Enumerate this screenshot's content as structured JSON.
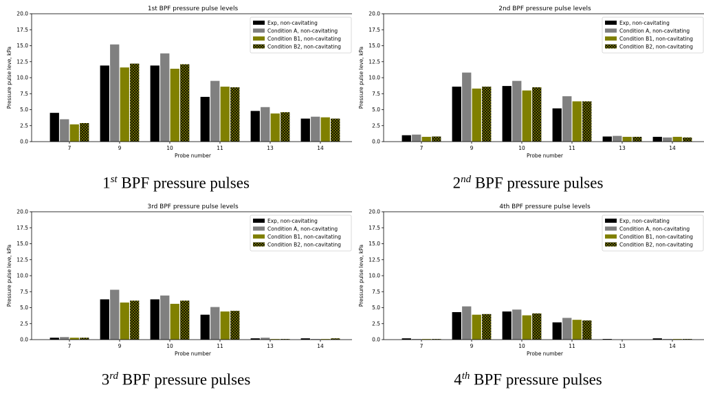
{
  "chart_data": [
    {
      "type": "bar",
      "title": "1st BPF pressure pulse levels",
      "xlabel": "Probe number",
      "ylabel": "Pressure pulse leve, kPa",
      "ylim": [
        0,
        20
      ],
      "yticks": [
        "0.0",
        "2.5",
        "5.0",
        "7.5",
        "10.0",
        "12.5",
        "15.0",
        "17.5",
        "20.0"
      ],
      "legend_position": "top-right",
      "categories": [
        "7",
        "9",
        "10",
        "11",
        "13",
        "14"
      ],
      "series": [
        {
          "name": "Exp, non-cavitating",
          "color": "#000000",
          "values": [
            4.5,
            11.9,
            11.9,
            7.0,
            4.8,
            3.6
          ]
        },
        {
          "name": "Condition A, non-cavitating",
          "color": "#808080",
          "values": [
            3.5,
            15.2,
            13.8,
            9.5,
            5.4,
            3.9
          ]
        },
        {
          "name": "Condition B1, non-cavitating",
          "color": "#808000",
          "values": [
            2.7,
            11.6,
            11.4,
            8.6,
            4.4,
            3.8
          ]
        },
        {
          "name": "Condition B2, non-cavitating",
          "color": "#808000",
          "hatch": true,
          "values": [
            2.9,
            12.2,
            12.1,
            8.5,
            4.6,
            3.6
          ]
        }
      ]
    },
    {
      "type": "bar",
      "title": "2nd BPF pressure pulse levels",
      "xlabel": "Probe number",
      "ylabel": "Pressure pulse leve, kPa",
      "ylim": [
        0,
        20
      ],
      "yticks": [
        "0.0",
        "2.5",
        "5.0",
        "7.5",
        "10.0",
        "12.5",
        "15.0",
        "17.5",
        "20.0"
      ],
      "legend_position": "top-right",
      "categories": [
        "7",
        "9",
        "10",
        "11",
        "13",
        "14"
      ],
      "series": [
        {
          "name": "Exp, non-cavitating",
          "color": "#000000",
          "values": [
            1.0,
            8.6,
            8.7,
            5.2,
            0.8,
            0.75
          ]
        },
        {
          "name": "Condition A, non-cavitating",
          "color": "#808080",
          "values": [
            1.1,
            10.8,
            9.5,
            7.1,
            0.9,
            0.65
          ]
        },
        {
          "name": "Condition B1, non-cavitating",
          "color": "#808000",
          "values": [
            0.75,
            8.3,
            8.0,
            6.3,
            0.75,
            0.75
          ]
        },
        {
          "name": "Condition B2, non-cavitating",
          "color": "#808000",
          "hatch": true,
          "values": [
            0.8,
            8.6,
            8.5,
            6.3,
            0.75,
            0.65
          ]
        }
      ]
    },
    {
      "type": "bar",
      "title": "3rd BPF pressure pulse levels",
      "xlabel": "Probe number",
      "ylabel": "Pressure pulse leve, kPa",
      "ylim": [
        0,
        20
      ],
      "yticks": [
        "0.0",
        "2.5",
        "5.0",
        "7.5",
        "10.0",
        "12.5",
        "15.0",
        "17.5",
        "20.0"
      ],
      "legend_position": "top-right",
      "categories": [
        "7",
        "9",
        "10",
        "11",
        "13",
        "14"
      ],
      "series": [
        {
          "name": "Exp, non-cavitating",
          "color": "#000000",
          "values": [
            0.3,
            6.3,
            6.3,
            3.9,
            0.2,
            0.2
          ]
        },
        {
          "name": "Condition A, non-cavitating",
          "color": "#808080",
          "values": [
            0.4,
            7.8,
            6.9,
            5.1,
            0.3,
            0.1
          ]
        },
        {
          "name": "Condition B1, non-cavitating",
          "color": "#808000",
          "values": [
            0.3,
            5.8,
            5.6,
            4.4,
            0.1,
            0.1
          ]
        },
        {
          "name": "Condition B2, non-cavitating",
          "color": "#808000",
          "hatch": true,
          "values": [
            0.3,
            6.1,
            6.1,
            4.5,
            0.1,
            0.2
          ]
        }
      ]
    },
    {
      "type": "bar",
      "title": "4th BPF pressure pulse levels",
      "xlabel": "Probe number",
      "ylabel": "Pressure pulse leve, kPa",
      "ylim": [
        0,
        20
      ],
      "yticks": [
        "0.0",
        "2.5",
        "5.0",
        "7.5",
        "10.0",
        "12.5",
        "15.0",
        "17.5",
        "20.0"
      ],
      "legend_position": "top-right",
      "categories": [
        "7",
        "9",
        "10",
        "11",
        "13",
        "14"
      ],
      "series": [
        {
          "name": "Exp, non-cavitating",
          "color": "#000000",
          "values": [
            0.2,
            4.3,
            4.4,
            2.7,
            0.1,
            0.2
          ]
        },
        {
          "name": "Condition A, non-cavitating",
          "color": "#808080",
          "values": [
            0.1,
            5.2,
            4.7,
            3.4,
            0.0,
            0.1
          ]
        },
        {
          "name": "Condition B1, non-cavitating",
          "color": "#808000",
          "values": [
            0.1,
            3.9,
            3.8,
            3.1,
            0.0,
            0.1
          ]
        },
        {
          "name": "Condition B2, non-cavitating",
          "color": "#808000",
          "hatch": true,
          "values": [
            0.1,
            4.0,
            4.1,
            3.0,
            0.0,
            0.1
          ]
        }
      ]
    }
  ],
  "captions": [
    {
      "ordinal": "1",
      "suffix": "st",
      "text": " BPF pressure pulses"
    },
    {
      "ordinal": "2",
      "suffix": "nd",
      "text": " BPF pressure pulses"
    },
    {
      "ordinal": "3",
      "suffix": "rd",
      "text": " BPF pressure pulses"
    },
    {
      "ordinal": "4",
      "suffix": "th",
      "text": " BPF pressure pulses"
    }
  ]
}
